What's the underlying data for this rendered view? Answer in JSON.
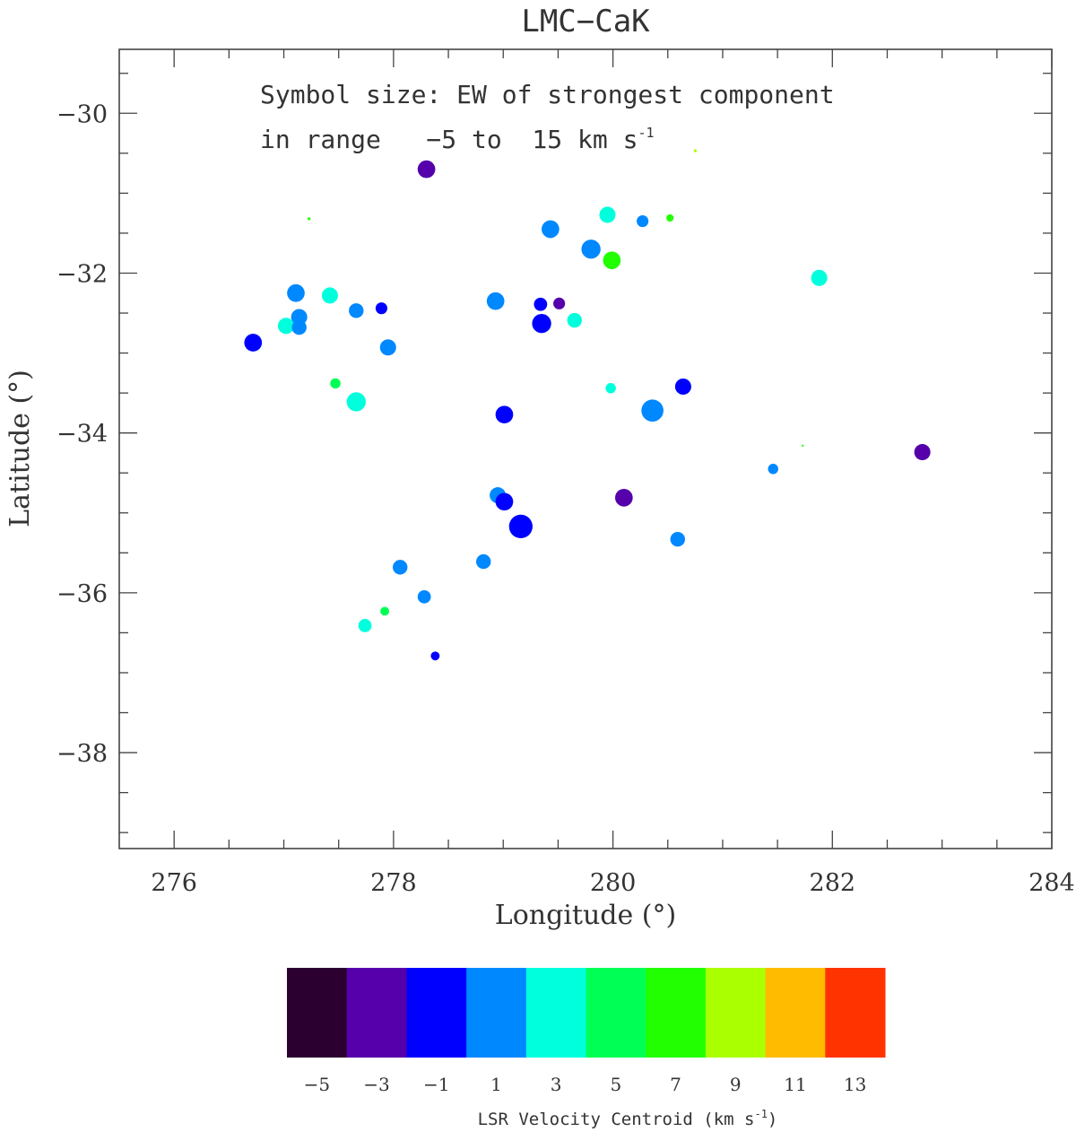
{
  "chart_data": {
    "type": "scatter",
    "title": "LMC−CaK",
    "xlabel": "Longitude (°)",
    "ylabel": "Latitude (°)",
    "xlim": [
      275.5,
      284
    ],
    "ylim": [
      -39.2,
      -29.2
    ],
    "x_ticks": [
      276,
      278,
      280,
      282,
      284
    ],
    "x_tick_labels": [
      "276",
      "278",
      "280",
      "282",
      "284"
    ],
    "y_ticks": [
      -30,
      -32,
      -34,
      -36,
      -38
    ],
    "y_tick_labels": [
      "−30",
      "−32",
      "−34",
      "−36",
      "−38"
    ],
    "annotation_line1": "Symbol size: EW of strongest component",
    "annotation_line2": "in range   −5 to  15 km s",
    "annotation_superscript": "-1",
    "grid": false,
    "colorbar": {
      "title": "LSR Velocity Centroid (km s",
      "title_superscript": "-1",
      "title_close": ")",
      "bins": [
        {
          "label": "−5",
          "value": -5,
          "color": "#2b0030"
        },
        {
          "label": "−3",
          "value": -3,
          "color": "#5500aa"
        },
        {
          "label": "−1",
          "value": -1,
          "color": "#0000ff"
        },
        {
          "label": "1",
          "value": 1,
          "color": "#0088ff"
        },
        {
          "label": "3",
          "value": 3,
          "color": "#00ffdd"
        },
        {
          "label": "5",
          "value": 5,
          "color": "#00ff55"
        },
        {
          "label": "7",
          "value": 7,
          "color": "#22ff00"
        },
        {
          "label": "9",
          "value": 9,
          "color": "#aaff00"
        },
        {
          "label": "11",
          "value": 11,
          "color": "#ffbb00"
        },
        {
          "label": "13",
          "value": 13,
          "color": "#ff3300"
        }
      ]
    },
    "points": [
      {
        "lon": 278.3,
        "lat": -30.7,
        "v": -3,
        "ew": 12
      },
      {
        "lon": 280.75,
        "lat": -30.47,
        "v": 9,
        "ew": 2
      },
      {
        "lon": 277.23,
        "lat": -31.32,
        "v": 7,
        "ew": 2
      },
      {
        "lon": 279.43,
        "lat": -31.45,
        "v": 1,
        "ew": 12
      },
      {
        "lon": 279.95,
        "lat": -31.27,
        "v": 3,
        "ew": 11
      },
      {
        "lon": 280.27,
        "lat": -31.35,
        "v": 1,
        "ew": 8
      },
      {
        "lon": 280.52,
        "lat": -31.31,
        "v": 7,
        "ew": 5
      },
      {
        "lon": 279.8,
        "lat": -31.7,
        "v": 1,
        "ew": 13
      },
      {
        "lon": 279.99,
        "lat": -31.84,
        "v": 7,
        "ew": 12
      },
      {
        "lon": 281.88,
        "lat": -32.06,
        "v": 3,
        "ew": 11
      },
      {
        "lon": 277.11,
        "lat": -32.25,
        "v": 1,
        "ew": 12
      },
      {
        "lon": 277.42,
        "lat": -32.28,
        "v": 3,
        "ew": 11
      },
      {
        "lon": 277.66,
        "lat": -32.47,
        "v": 1,
        "ew": 10
      },
      {
        "lon": 277.89,
        "lat": -32.44,
        "v": -1,
        "ew": 8
      },
      {
        "lon": 278.93,
        "lat": -32.35,
        "v": 1,
        "ew": 12
      },
      {
        "lon": 279.34,
        "lat": -32.39,
        "v": -1,
        "ew": 9
      },
      {
        "lon": 279.51,
        "lat": -32.38,
        "v": -3,
        "ew": 8
      },
      {
        "lon": 277.14,
        "lat": -32.55,
        "v": 1,
        "ew": 11
      },
      {
        "lon": 277.02,
        "lat": -32.66,
        "v": 3,
        "ew": 11
      },
      {
        "lon": 277.14,
        "lat": -32.68,
        "v": 1,
        "ew": 10
      },
      {
        "lon": 279.35,
        "lat": -32.63,
        "v": -1,
        "ew": 13
      },
      {
        "lon": 279.65,
        "lat": -32.59,
        "v": 3,
        "ew": 10
      },
      {
        "lon": 276.72,
        "lat": -32.87,
        "v": -1,
        "ew": 12
      },
      {
        "lon": 277.95,
        "lat": -32.93,
        "v": 1,
        "ew": 11
      },
      {
        "lon": 277.47,
        "lat": -33.38,
        "v": 5,
        "ew": 7
      },
      {
        "lon": 279.98,
        "lat": -33.44,
        "v": 3,
        "ew": 7
      },
      {
        "lon": 280.64,
        "lat": -33.42,
        "v": -1,
        "ew": 11
      },
      {
        "lon": 277.66,
        "lat": -33.61,
        "v": 3,
        "ew": 13
      },
      {
        "lon": 280.36,
        "lat": -33.72,
        "v": 1,
        "ew": 15
      },
      {
        "lon": 279.01,
        "lat": -33.77,
        "v": -1,
        "ew": 12
      },
      {
        "lon": 281.73,
        "lat": -34.16,
        "v": 7,
        "ew": 1
      },
      {
        "lon": 282.82,
        "lat": -34.24,
        "v": -3,
        "ew": 11
      },
      {
        "lon": 281.46,
        "lat": -34.45,
        "v": 1,
        "ew": 7
      },
      {
        "lon": 278.95,
        "lat": -34.78,
        "v": 1,
        "ew": 11
      },
      {
        "lon": 279.01,
        "lat": -34.86,
        "v": -1,
        "ew": 12
      },
      {
        "lon": 280.1,
        "lat": -34.81,
        "v": -3,
        "ew": 12
      },
      {
        "lon": 279.16,
        "lat": -35.17,
        "v": -1,
        "ew": 16
      },
      {
        "lon": 280.59,
        "lat": -35.33,
        "v": 1,
        "ew": 10
      },
      {
        "lon": 278.82,
        "lat": -35.61,
        "v": 1,
        "ew": 10
      },
      {
        "lon": 278.06,
        "lat": -35.68,
        "v": 1,
        "ew": 10
      },
      {
        "lon": 278.28,
        "lat": -36.05,
        "v": 1,
        "ew": 9
      },
      {
        "lon": 277.92,
        "lat": -36.23,
        "v": 5,
        "ew": 6
      },
      {
        "lon": 277.74,
        "lat": -36.41,
        "v": 3,
        "ew": 9
      },
      {
        "lon": 278.38,
        "lat": -36.79,
        "v": -1,
        "ew": 6
      }
    ]
  }
}
